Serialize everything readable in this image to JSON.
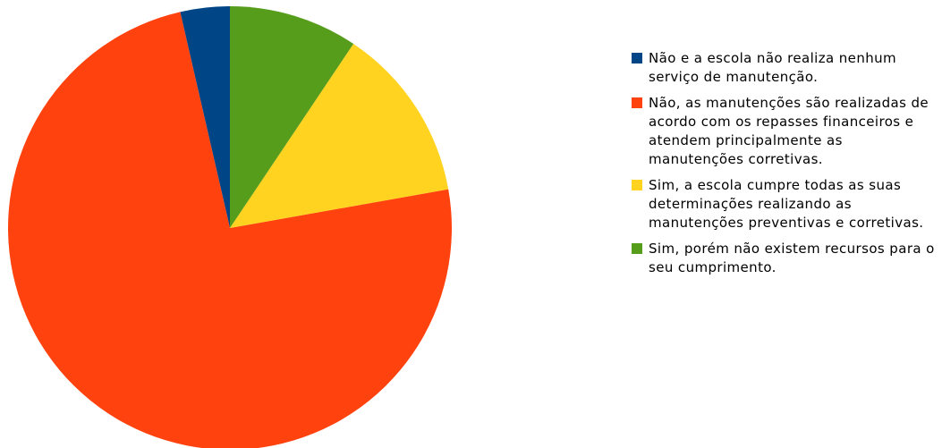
{
  "chart_data": {
    "type": "pie",
    "series": [
      {
        "name": "Não e a escola não realiza nenhum serviço de manutenção.",
        "color": "#004586",
        "values": [
          3.6
        ]
      },
      {
        "name": "Não, as manutenções são realizadas de acordo com os repasses financeiros e atendem principalmente as manutenções corretivas.",
        "color": "#ff420e",
        "values": [
          74.2
        ]
      },
      {
        "name": "Sim, a escola cumpre todas as suas determinações realizando as manutenções preventivas e corretivas.",
        "color": "#ffd320",
        "values": [
          12.8
        ]
      },
      {
        "name": "Sim, porém não existem recursos para o seu cumprimento.",
        "color": "#579d1c",
        "values": [
          9.4
        ]
      }
    ],
    "legend": "right"
  }
}
